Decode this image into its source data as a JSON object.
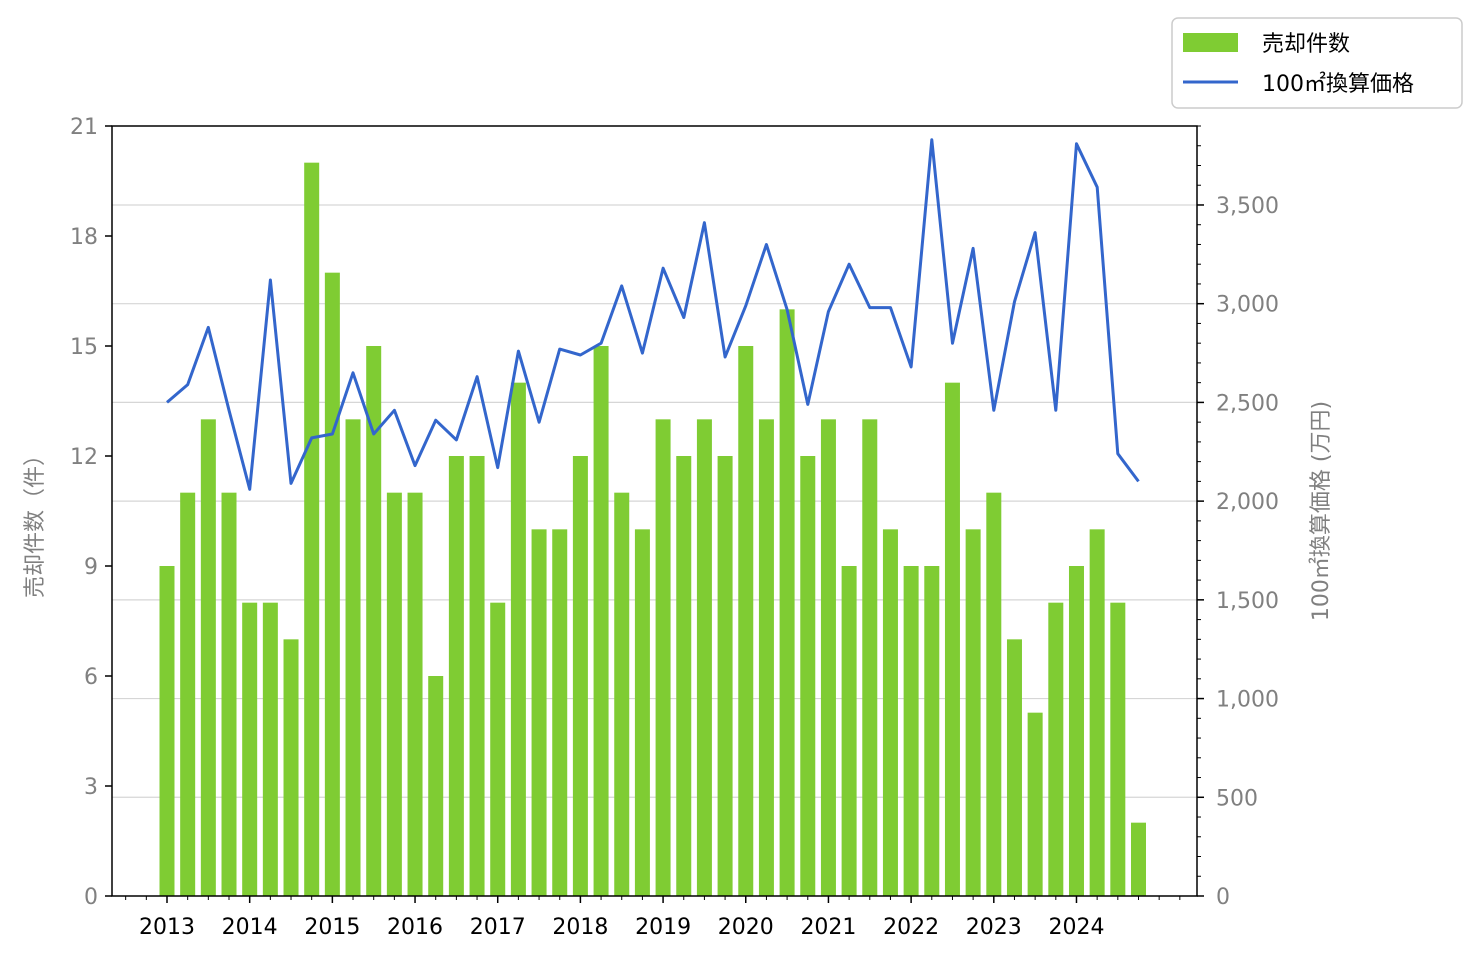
{
  "chart_data": {
    "type": "bar+line",
    "title": "",
    "xlabel": "",
    "ylabel_left": "売却件数（件）",
    "ylabel_right": "100㎡換算価格 (万円)",
    "ylim_left": [
      0,
      21
    ],
    "ylim_right": [
      0,
      3900
    ],
    "yticks_left": [
      0,
      3,
      6,
      9,
      12,
      15,
      18,
      21
    ],
    "yticks_right": [
      0,
      500,
      1000,
      1500,
      2000,
      2500,
      3000,
      3500
    ],
    "yticks_right_labels": [
      "0",
      "500",
      "1,000",
      "1,500",
      "2,000",
      "2,500",
      "3,000",
      "3,500"
    ],
    "x_tick_years": [
      "2013",
      "2014",
      "2015",
      "2016",
      "2017",
      "2018",
      "2019",
      "2020",
      "2021",
      "2022",
      "2023",
      "2024"
    ],
    "grid": "horizontal",
    "legend_position": "top-right",
    "bar_color": "#7fcc33",
    "line_color": "#3366cc",
    "series": [
      {
        "name": "売却件数",
        "type": "bar",
        "axis": "left",
        "values": [
          9,
          11,
          13,
          11,
          8,
          8,
          7,
          20,
          17,
          13,
          15,
          11,
          11,
          6,
          12,
          12,
          8,
          14,
          10,
          10,
          12,
          15,
          11,
          10,
          13,
          12,
          13,
          12,
          15,
          13,
          16,
          12,
          13,
          9,
          13,
          10,
          9,
          9,
          14,
          10,
          11,
          7,
          5,
          8,
          9,
          10,
          8,
          2
        ]
      },
      {
        "name": "100㎡換算価格",
        "type": "line",
        "axis": "right",
        "values": [
          2500,
          2590,
          2880,
          2460,
          2060,
          3120,
          2090,
          2320,
          2340,
          2650,
          2340,
          2460,
          2180,
          2410,
          2310,
          2630,
          2170,
          2760,
          2400,
          2770,
          2740,
          2800,
          3090,
          2750,
          3180,
          2930,
          3410,
          2730,
          2990,
          3300,
          2970,
          2490,
          2960,
          3200,
          2980,
          2980,
          2680,
          3830,
          2800,
          3280,
          2460,
          3010,
          3360,
          2460,
          3810,
          3590,
          2240,
          2100
        ]
      }
    ]
  }
}
